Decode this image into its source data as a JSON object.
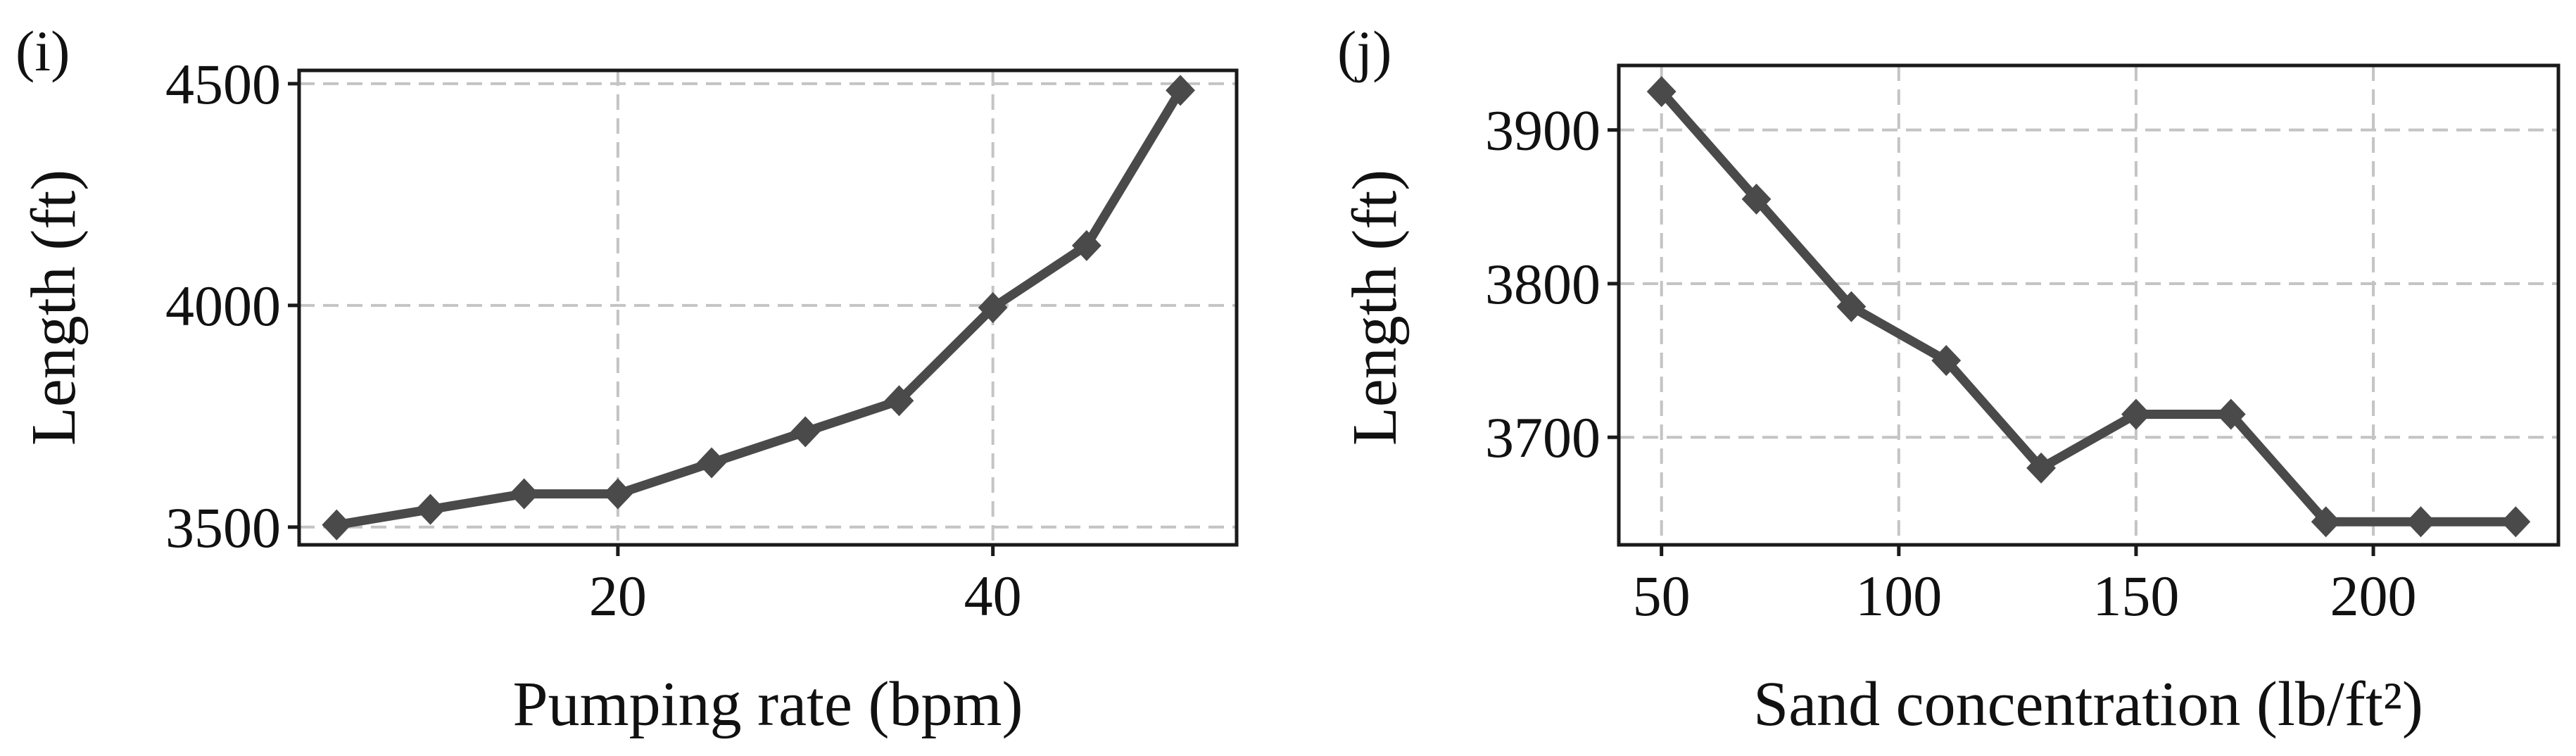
{
  "chart_data": [
    {
      "type": "line",
      "panel_label": "(i)",
      "xlabel": "Pumping rate (bpm)",
      "ylabel": "Length (ft)",
      "xlim": [
        3,
        53
      ],
      "ylim": [
        3460,
        4530
      ],
      "xticks": [
        20,
        40
      ],
      "yticks": [
        3500,
        4000,
        4500
      ],
      "grid": true,
      "series": [
        {
          "name": "Length",
          "color": "#4a4a4a",
          "marker": "diamond",
          "x": [
            5,
            10,
            15,
            20,
            25,
            30,
            35,
            40,
            45,
            50
          ],
          "y": [
            3505,
            3540,
            3575,
            3575,
            3645,
            3715,
            3785,
            3995,
            4135,
            4485
          ]
        }
      ]
    },
    {
      "type": "line",
      "panel_label": "(j)",
      "xlabel": "Sand concentration (lb/ft²)",
      "ylabel": "Length (ft)",
      "xlim": [
        41,
        239
      ],
      "ylim": [
        3630,
        3942
      ],
      "xticks": [
        50,
        100,
        150,
        200
      ],
      "yticks": [
        3700,
        3800,
        3900
      ],
      "grid": true,
      "series": [
        {
          "name": "Length",
          "color": "#4a4a4a",
          "marker": "diamond",
          "x": [
            50,
            70,
            90,
            110,
            130,
            150,
            170,
            190,
            210,
            230
          ],
          "y": [
            3925,
            3855,
            3785,
            3750,
            3680,
            3715,
            3715,
            3645,
            3645,
            3645
          ]
        }
      ]
    }
  ]
}
